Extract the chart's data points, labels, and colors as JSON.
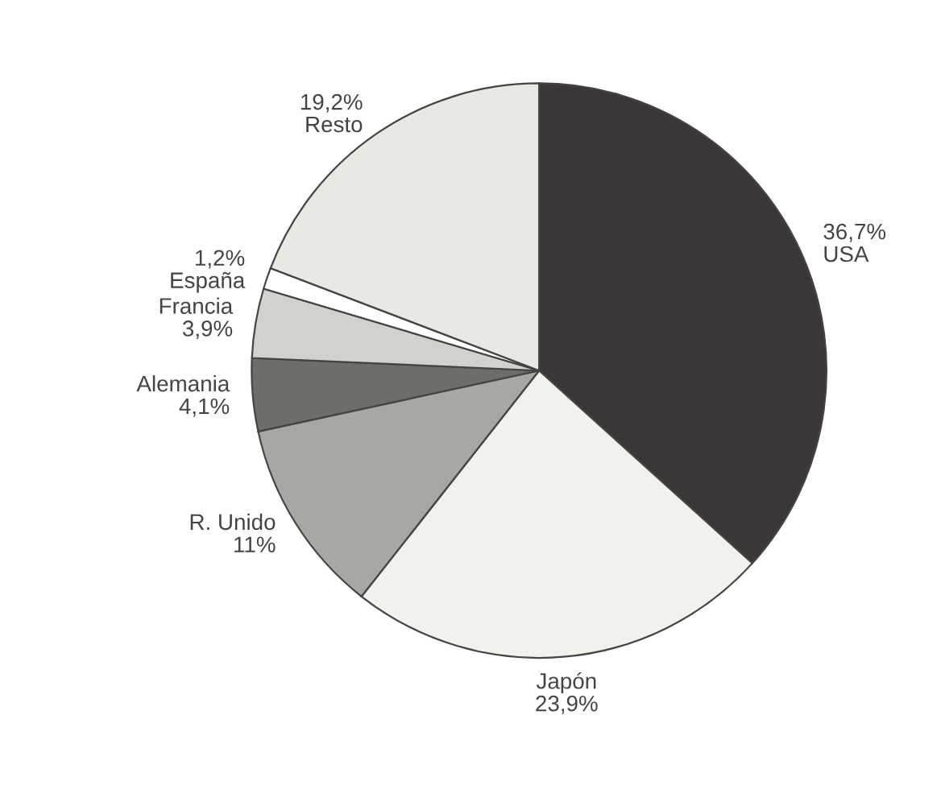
{
  "chart_data": {
    "type": "pie",
    "categories": [
      "USA",
      "Japón",
      "R. Unido",
      "Alemania",
      "Francia",
      "España",
      "Resto"
    ],
    "values": [
      36.7,
      23.9,
      11,
      4.1,
      3.9,
      1.2,
      19.2
    ],
    "value_labels": [
      "36,7%",
      "23,9%",
      "11%",
      "4,1%",
      "3,9%",
      "1,2%",
      "19,2%"
    ],
    "colors": [
      "#3b3737",
      "#f2f1ec",
      "#a9a7a3",
      "#6f6d6a",
      "#d2d1cd",
      "#ffffff",
      "#e9e8e3"
    ]
  }
}
